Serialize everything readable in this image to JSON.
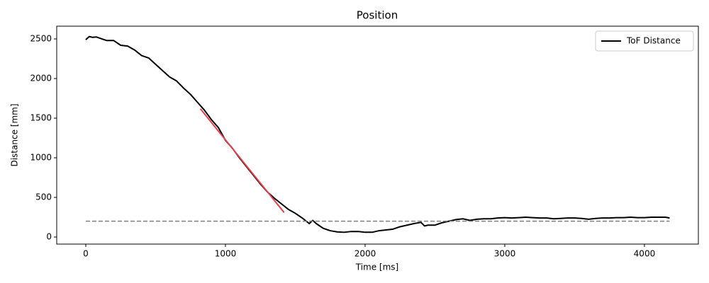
{
  "chart_data": {
    "type": "line",
    "title": "Position",
    "xlabel": "Time [ms]",
    "ylabel": "Distance [mm]",
    "xlim": [
      -208,
      4386
    ],
    "ylim": [
      -89,
      2661
    ],
    "xticks": [
      0,
      1000,
      2000,
      3000,
      4000
    ],
    "yticks": [
      0,
      500,
      1000,
      1500,
      2000,
      2500
    ],
    "legend": "upper right",
    "series": [
      {
        "name": "ToF Distance",
        "color": "#000000",
        "linestyle": "solid",
        "x": [
          0,
          25,
          50,
          75,
          100,
          150,
          200,
          250,
          300,
          350,
          400,
          450,
          500,
          550,
          600,
          650,
          700,
          750,
          800,
          850,
          900,
          950,
          1000,
          1050,
          1100,
          1150,
          1200,
          1250,
          1300,
          1350,
          1400,
          1450,
          1500,
          1550,
          1600,
          1625,
          1650,
          1700,
          1750,
          1800,
          1850,
          1900,
          1950,
          2000,
          2050,
          2100,
          2150,
          2200,
          2250,
          2300,
          2350,
          2400,
          2425,
          2450,
          2500,
          2550,
          2600,
          2650,
          2700,
          2750,
          2800,
          2850,
          2900,
          2950,
          3000,
          3050,
          3100,
          3150,
          3200,
          3250,
          3300,
          3350,
          3400,
          3450,
          3500,
          3550,
          3600,
          3650,
          3700,
          3750,
          3800,
          3850,
          3900,
          3950,
          4000,
          4050,
          4100,
          4150,
          4180
        ],
        "values": [
          2490,
          2530,
          2520,
          2525,
          2510,
          2480,
          2480,
          2420,
          2410,
          2360,
          2290,
          2260,
          2180,
          2100,
          2020,
          1970,
          1880,
          1800,
          1700,
          1600,
          1480,
          1380,
          1220,
          1120,
          1000,
          890,
          780,
          670,
          570,
          490,
          420,
          350,
          300,
          240,
          170,
          210,
          170,
          110,
          80,
          65,
          60,
          70,
          70,
          60,
          60,
          80,
          90,
          100,
          130,
          150,
          170,
          185,
          140,
          150,
          150,
          180,
          200,
          220,
          230,
          210,
          225,
          230,
          230,
          240,
          245,
          240,
          245,
          250,
          245,
          240,
          240,
          230,
          235,
          240,
          240,
          235,
          225,
          235,
          240,
          240,
          245,
          245,
          250,
          245,
          245,
          250,
          250,
          250,
          240
        ]
      },
      {
        "color": "#e8414e",
        "linestyle": "solid",
        "x": [
          820,
          1420
        ],
        "values": [
          1620,
          310
        ]
      },
      {
        "color": "#808080",
        "linestyle": "dashed",
        "x": [
          0,
          4180
        ],
        "values": [
          200,
          200
        ]
      }
    ]
  }
}
